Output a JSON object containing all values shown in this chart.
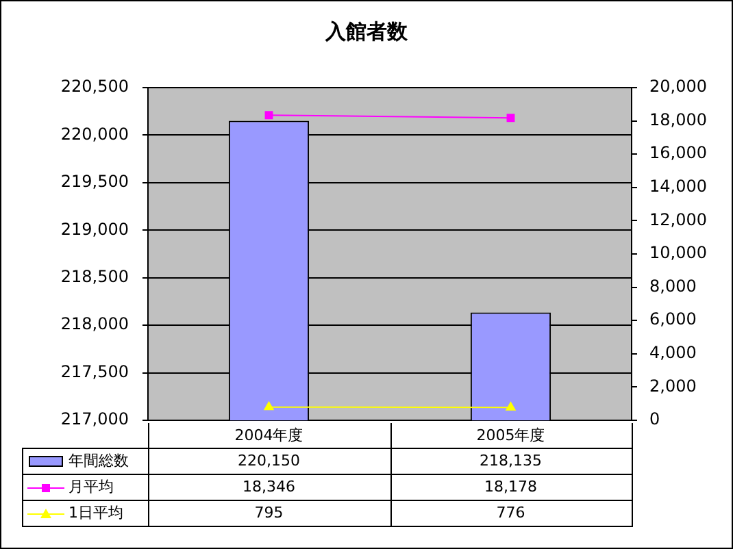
{
  "chart_data": {
    "type": "bar",
    "title": "入館者数",
    "categories": [
      "2004年度",
      "2005年度"
    ],
    "series": [
      {
        "name": "年間総数",
        "color": "#9999ff",
        "values": [
          220150,
          218135
        ],
        "value_labels": [
          "220,150",
          "218,135"
        ]
      },
      {
        "name": "月平均",
        "type": "line",
        "axis": "y2",
        "color": "#ff00ff",
        "marker": "square",
        "values": [
          18346,
          18178
        ],
        "value_labels": [
          "18,346",
          "18,178"
        ]
      },
      {
        "name": "1日平均",
        "type": "line",
        "axis": "y2",
        "color": "#ffff00",
        "marker": "triangle",
        "values": [
          795,
          776
        ],
        "value_labels": [
          "795",
          "776"
        ]
      }
    ],
    "ylim": [
      217000,
      220500
    ],
    "yticks": [
      {
        "value": 217000,
        "label": "217,000"
      },
      {
        "value": 217500,
        "label": "217,500"
      },
      {
        "value": 218000,
        "label": "218,000"
      },
      {
        "value": 218500,
        "label": "218,500"
      },
      {
        "value": 219000,
        "label": "219,000"
      },
      {
        "value": 219500,
        "label": "219,500"
      },
      {
        "value": 220000,
        "label": "220,000"
      },
      {
        "value": 220500,
        "label": "220,500"
      }
    ],
    "y2lim": [
      0,
      20000
    ],
    "y2ticks": [
      0,
      {
        "value": 2000,
        "label": "2,000"
      },
      {
        "value": 4000,
        "label": "4,000"
      },
      {
        "value": 6000,
        "label": "6,000"
      },
      {
        "value": 8000,
        "label": "8,000"
      },
      {
        "value": 10000,
        "label": "10,000"
      },
      {
        "value": 12000,
        "label": "12,000"
      },
      {
        "value": 14000,
        "label": "14,000"
      },
      {
        "value": 16000,
        "label": "16,000"
      },
      {
        "value": 18000,
        "label": "18,000"
      },
      {
        "value": 20000,
        "label": "20,000"
      }
    ],
    "grid": "y",
    "legend": "bottom left",
    "line_style": "solid"
  }
}
